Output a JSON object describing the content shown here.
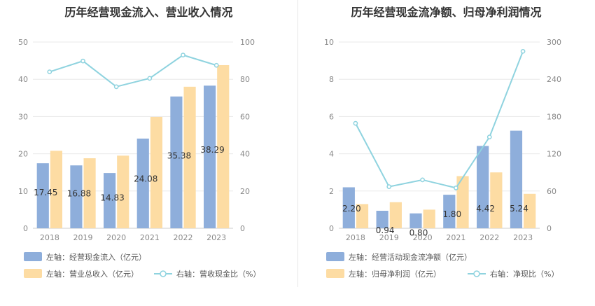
{
  "chart_data": [
    {
      "title": "历年经营现金流入、营业收入情况",
      "type": "bar",
      "categories": [
        "2018",
        "2019",
        "2020",
        "2021",
        "2022",
        "2023"
      ],
      "left_axis": {
        "ylim": [
          0,
          50
        ],
        "ticks": [
          "0",
          "10",
          "20",
          "30",
          "40",
          "50"
        ]
      },
      "right_axis": {
        "ylim": [
          0,
          100
        ],
        "ticks": [
          "0",
          "20",
          "40",
          "60",
          "80",
          "100"
        ]
      },
      "series": [
        {
          "name": "左轴：经营现金流入（亿元）",
          "type": "bar",
          "axis": "left",
          "color": "#8eaedb",
          "values": [
            17.45,
            16.88,
            14.83,
            24.08,
            35.38,
            38.29
          ],
          "labels": [
            "17.45",
            "16.88",
            "14.83",
            "24.08",
            "35.38",
            "38.29"
          ]
        },
        {
          "name": "左轴：营业总收入（亿元）",
          "type": "bar",
          "axis": "left",
          "color": "#fddca3",
          "values": [
            20.8,
            18.8,
            19.5,
            29.9,
            38.0,
            43.8
          ]
        },
        {
          "name": "右轴：营收现金比（%）",
          "type": "line",
          "axis": "right",
          "color": "#8fd3df",
          "values": [
            84.0,
            89.8,
            76.0,
            80.5,
            93.0,
            87.5
          ]
        }
      ],
      "grid": true
    },
    {
      "title": "历年经营现金流净额、归母净利润情况",
      "type": "bar",
      "categories": [
        "2018",
        "2019",
        "2020",
        "2021",
        "2022",
        "2023"
      ],
      "left_axis": {
        "ylim": [
          0,
          10
        ],
        "ticks": [
          "0",
          "2",
          "4",
          "6",
          "8",
          "10"
        ]
      },
      "right_axis": {
        "ylim": [
          0,
          300
        ],
        "ticks": [
          "0",
          "60",
          "120",
          "180",
          "240",
          "300"
        ]
      },
      "series": [
        {
          "name": "左轴：经营活动现金流净额（亿元）",
          "type": "bar",
          "axis": "left",
          "color": "#8eaedb",
          "values": [
            2.2,
            0.94,
            0.8,
            1.8,
            4.42,
            5.24
          ],
          "labels": [
            "2.20",
            "0.94",
            "0.80",
            "1.80",
            "4.42",
            "5.24"
          ]
        },
        {
          "name": "左轴：归母净利润（亿元）",
          "type": "bar",
          "axis": "left",
          "color": "#fddca3",
          "values": [
            1.3,
            1.4,
            1.0,
            2.8,
            3.0,
            1.85
          ]
        },
        {
          "name": "右轴：净现比（%）",
          "type": "line",
          "axis": "right",
          "color": "#8fd3df",
          "values": [
            169,
            67,
            78,
            65,
            147,
            285
          ]
        }
      ],
      "grid": true
    }
  ]
}
